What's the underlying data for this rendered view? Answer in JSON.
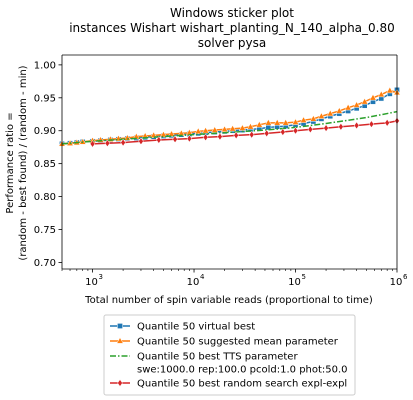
{
  "chart_data": {
    "type": "line",
    "title_lines": [
      "Windows sticker plot",
      "instances Wishart wishart_planting_N_140_alpha_0.80",
      "solver pysa"
    ],
    "xlabel": "Total number of spin variable reads (proportional to time)",
    "ylabel_lines": [
      "Performance ratio =",
      "(random - best found) / (random - min)"
    ],
    "xscale": "log",
    "xlim": [
      500,
      1000000
    ],
    "ylim": [
      0.69,
      1.015
    ],
    "xticks": [
      {
        "value": 1000,
        "base": "10",
        "exp": "3"
      },
      {
        "value": 10000,
        "base": "10",
        "exp": "4"
      },
      {
        "value": 100000,
        "base": "10",
        "exp": "5"
      },
      {
        "value": 1000000,
        "base": "10",
        "exp": "6"
      }
    ],
    "yticks": [
      {
        "value": 0.7,
        "label": "0.70"
      },
      {
        "value": 0.75,
        "label": "0.75"
      },
      {
        "value": 0.8,
        "label": "0.80"
      },
      {
        "value": 0.85,
        "label": "0.85"
      },
      {
        "value": 0.9,
        "label": "0.90"
      },
      {
        "value": 0.95,
        "label": "0.95"
      },
      {
        "value": 1.0,
        "label": "1.00"
      }
    ],
    "grid": false,
    "legend_placement": "below",
    "series": [
      {
        "name": "Quantile 50 virtual best",
        "color": "#1f77b4",
        "marker": "square",
        "dash": "solid",
        "points": [
          [
            500,
            0.88
          ],
          [
            600,
            0.881
          ],
          [
            700,
            0.882
          ],
          [
            800,
            0.883
          ],
          [
            1000,
            0.884
          ],
          [
            1200,
            0.885
          ],
          [
            1500,
            0.886
          ],
          [
            1800,
            0.887
          ],
          [
            2200,
            0.888
          ],
          [
            2700,
            0.889
          ],
          [
            3300,
            0.89
          ],
          [
            4000,
            0.891
          ],
          [
            5000,
            0.892
          ],
          [
            6000,
            0.893
          ],
          [
            7500,
            0.894
          ],
          [
            9000,
            0.895
          ],
          [
            11000,
            0.896
          ],
          [
            13000,
            0.897
          ],
          [
            16000,
            0.898
          ],
          [
            20000,
            0.899
          ],
          [
            24000,
            0.9
          ],
          [
            30000,
            0.901
          ],
          [
            36000,
            0.902
          ],
          [
            44000,
            0.903
          ],
          [
            54000,
            0.905
          ],
          [
            66000,
            0.906
          ],
          [
            80000,
            0.907
          ],
          [
            100000,
            0.909
          ],
          [
            120000,
            0.911
          ],
          [
            150000,
            0.914
          ],
          [
            180000,
            0.918
          ],
          [
            220000,
            0.922
          ],
          [
            270000,
            0.926
          ],
          [
            330000,
            0.93
          ],
          [
            400000,
            0.934
          ],
          [
            480000,
            0.938
          ],
          [
            580000,
            0.944
          ],
          [
            700000,
            0.949
          ],
          [
            850000,
            0.956
          ],
          [
            1000000,
            0.962
          ]
        ]
      },
      {
        "name": "Quantile 50 suggested mean parameter",
        "color": "#ff7f0e",
        "marker": "triangle",
        "dash": "solid",
        "points": [
          [
            500,
            0.88
          ],
          [
            600,
            0.881
          ],
          [
            700,
            0.882
          ],
          [
            800,
            0.883
          ],
          [
            1000,
            0.885
          ],
          [
            1200,
            0.886
          ],
          [
            1500,
            0.887
          ],
          [
            1800,
            0.888
          ],
          [
            2200,
            0.889
          ],
          [
            2700,
            0.891
          ],
          [
            3300,
            0.892
          ],
          [
            4000,
            0.893
          ],
          [
            5000,
            0.894
          ],
          [
            6000,
            0.895
          ],
          [
            7500,
            0.896
          ],
          [
            9000,
            0.897
          ],
          [
            11000,
            0.899
          ],
          [
            13000,
            0.9
          ],
          [
            16000,
            0.901
          ],
          [
            20000,
            0.902
          ],
          [
            24000,
            0.903
          ],
          [
            30000,
            0.904
          ],
          [
            36000,
            0.906
          ],
          [
            44000,
            0.909
          ],
          [
            54000,
            0.912
          ],
          [
            66000,
            0.912
          ],
          [
            80000,
            0.912
          ],
          [
            100000,
            0.913
          ],
          [
            120000,
            0.916
          ],
          [
            150000,
            0.918
          ],
          [
            180000,
            0.922
          ],
          [
            220000,
            0.926
          ],
          [
            270000,
            0.93
          ],
          [
            330000,
            0.935
          ],
          [
            400000,
            0.939
          ],
          [
            480000,
            0.944
          ],
          [
            580000,
            0.95
          ],
          [
            700000,
            0.955
          ],
          [
            850000,
            0.961
          ],
          [
            1000000,
            0.958
          ]
        ]
      },
      {
        "name": "Quantile 50 best TTS parameter",
        "name_line2": "swe:1000.0 rep:100.0 pcold:1.0 phot:50.0",
        "color": "#2ca02c",
        "marker": "none",
        "dash": "dashdot",
        "points": [
          [
            500,
            0.88
          ],
          [
            1000,
            0.884
          ],
          [
            2000,
            0.887
          ],
          [
            5000,
            0.891
          ],
          [
            10000,
            0.894
          ],
          [
            20000,
            0.897
          ],
          [
            50000,
            0.901
          ],
          [
            100000,
            0.905
          ],
          [
            200000,
            0.911
          ],
          [
            500000,
            0.92
          ],
          [
            1000000,
            0.929
          ]
        ]
      },
      {
        "name": "Quantile 50  best random search expl-expl",
        "color": "#d62728",
        "marker": "diamond",
        "dash": "solid",
        "points": [
          [
            1000,
            0.88
          ],
          [
            1400,
            0.881
          ],
          [
            2000,
            0.882
          ],
          [
            3000,
            0.884
          ],
          [
            4500,
            0.886
          ],
          [
            6500,
            0.887
          ],
          [
            9000,
            0.888
          ],
          [
            13000,
            0.89
          ],
          [
            18000,
            0.891
          ],
          [
            26000,
            0.893
          ],
          [
            37000,
            0.894
          ],
          [
            52000,
            0.896
          ],
          [
            75000,
            0.898
          ],
          [
            100000,
            0.9
          ],
          [
            140000,
            0.902
          ],
          [
            200000,
            0.904
          ],
          [
            280000,
            0.906
          ],
          [
            400000,
            0.908
          ],
          [
            560000,
            0.91
          ],
          [
            800000,
            0.912
          ],
          [
            1000000,
            0.915
          ]
        ]
      }
    ]
  }
}
